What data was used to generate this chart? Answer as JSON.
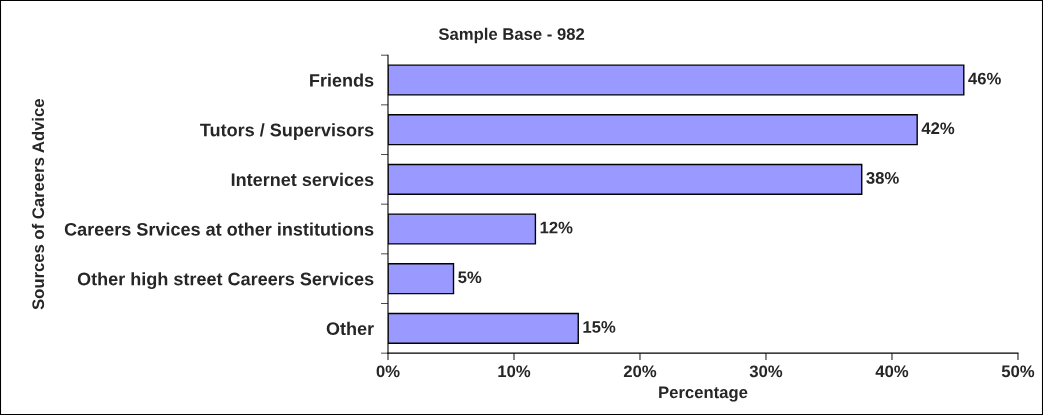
{
  "chart_data": {
    "type": "bar",
    "orientation": "horizontal",
    "title": "Sample Base - 982",
    "xlabel": "Percentage",
    "ylabel": "Sources of Careers Advice",
    "categories": [
      "Friends",
      "Tutors / Supervisors",
      "Internet services",
      "Careers Srvices at other institutions",
      "Other high street Careers Services",
      "Other"
    ],
    "values": [
      45.7,
      42.0,
      37.6,
      11.7,
      5.2,
      15.1
    ],
    "value_labels": [
      "46%",
      "42%",
      "38%",
      "12%",
      "5%",
      "15%"
    ],
    "color": "#9999ff",
    "xlim": [
      0,
      50
    ],
    "xticks": [
      {
        "value": 0,
        "label": "0%"
      },
      {
        "value": 10,
        "label": "10%"
      },
      {
        "value": 20,
        "label": "20%"
      },
      {
        "value": 30,
        "label": "30%"
      },
      {
        "value": 40,
        "label": "40%"
      },
      {
        "value": 50,
        "label": "50%"
      }
    ],
    "grid": false,
    "legend": false
  }
}
